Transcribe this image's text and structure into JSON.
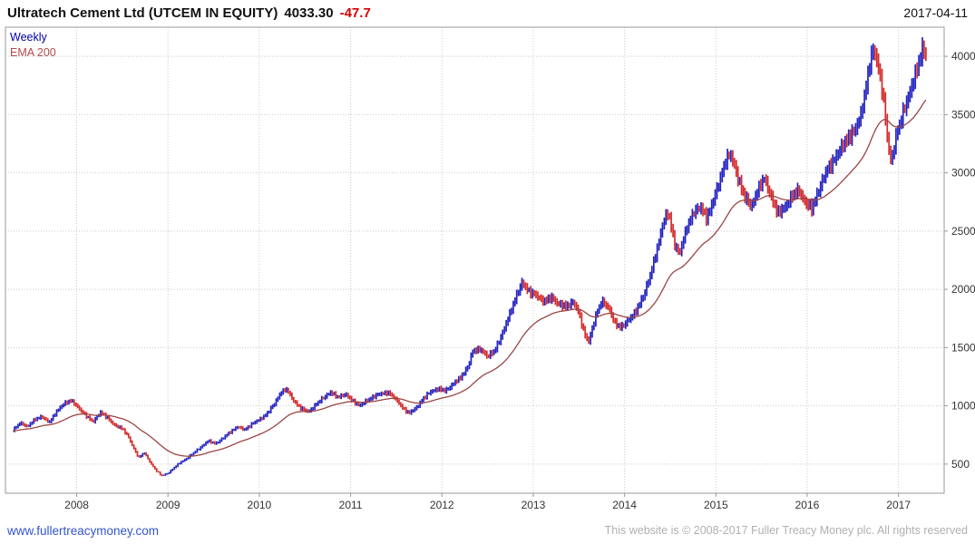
{
  "colors": {
    "negative": "#d40000",
    "up_bar": "#2222c0",
    "down_bar": "#d42a2a",
    "ema_line": "#9e4343",
    "legend_weekly": "#0000aa",
    "legend_ema": "#b44b4b",
    "grid": "#c9c9c9",
    "axis": "#9a9a9a",
    "tick_text": "#333333",
    "link": "#3355cc",
    "copyright_text": "#b0b0b0"
  },
  "header": {
    "title": "Ultratech Cement Ltd (UTCEM IN EQUITY)",
    "last_price": "4033.30",
    "change": "-47.7",
    "date": "2017-04-11"
  },
  "legend": {
    "series_label": "Weekly",
    "overlay_label": "EMA 200"
  },
  "footer": {
    "website": "www.fullertreacymoney.com",
    "copyright": "This website is © 2008-2017 Fuller Treacy Money plc. All rights reserved"
  },
  "chart_data": {
    "type": "line",
    "variant": "weekly ohlc-style price bars with EMA overlay",
    "title": "Ultratech Cement Ltd (UTCEM IN EQUITY)",
    "xlabel": "",
    "ylabel": "",
    "legend_position": "top-left",
    "grid": "dotted",
    "x_axis": {
      "range": [
        2007.22,
        2017.5
      ],
      "ticks": [
        2008,
        2009,
        2010,
        2011,
        2012,
        2013,
        2014,
        2015,
        2016,
        2017
      ]
    },
    "y_axis": {
      "range": [
        250,
        4250
      ],
      "ticks": [
        500,
        1000,
        1500,
        2000,
        2500,
        3000,
        3500,
        4000
      ],
      "side": "right"
    },
    "series": [
      {
        "name": "Weekly",
        "color_up": "#2222c0",
        "color_down": "#d42a2a",
        "keypoints": [
          [
            2007.3,
            790
          ],
          [
            2007.38,
            855
          ],
          [
            2007.46,
            820
          ],
          [
            2007.54,
            885
          ],
          [
            2007.62,
            905
          ],
          [
            2007.7,
            860
          ],
          [
            2007.78,
            950
          ],
          [
            2007.86,
            1020
          ],
          [
            2007.94,
            1045
          ],
          [
            2008.02,
            985
          ],
          [
            2008.1,
            915
          ],
          [
            2008.18,
            865
          ],
          [
            2008.26,
            945
          ],
          [
            2008.34,
            895
          ],
          [
            2008.42,
            830
          ],
          [
            2008.5,
            805
          ],
          [
            2008.56,
            745
          ],
          [
            2008.62,
            640
          ],
          [
            2008.68,
            555
          ],
          [
            2008.74,
            600
          ],
          [
            2008.8,
            520
          ],
          [
            2008.86,
            455
          ],
          [
            2008.93,
            400
          ],
          [
            2009.0,
            420
          ],
          [
            2009.06,
            465
          ],
          [
            2009.12,
            505
          ],
          [
            2009.2,
            545
          ],
          [
            2009.28,
            595
          ],
          [
            2009.36,
            645
          ],
          [
            2009.44,
            700
          ],
          [
            2009.52,
            675
          ],
          [
            2009.6,
            720
          ],
          [
            2009.68,
            775
          ],
          [
            2009.76,
            820
          ],
          [
            2009.84,
            795
          ],
          [
            2009.92,
            845
          ],
          [
            2010.0,
            880
          ],
          [
            2010.08,
            930
          ],
          [
            2010.16,
            1010
          ],
          [
            2010.24,
            1120
          ],
          [
            2010.3,
            1140
          ],
          [
            2010.38,
            1040
          ],
          [
            2010.46,
            975
          ],
          [
            2010.54,
            950
          ],
          [
            2010.62,
            1010
          ],
          [
            2010.7,
            1070
          ],
          [
            2010.78,
            1115
          ],
          [
            2010.86,
            1075
          ],
          [
            2010.94,
            1100
          ],
          [
            2011.02,
            1045
          ],
          [
            2011.1,
            1000
          ],
          [
            2011.18,
            1045
          ],
          [
            2011.26,
            1085
          ],
          [
            2011.34,
            1105
          ],
          [
            2011.42,
            1115
          ],
          [
            2011.5,
            1050
          ],
          [
            2011.58,
            975
          ],
          [
            2011.64,
            935
          ],
          [
            2011.72,
            985
          ],
          [
            2011.8,
            1065
          ],
          [
            2011.88,
            1125
          ],
          [
            2011.96,
            1145
          ],
          [
            2012.04,
            1130
          ],
          [
            2012.12,
            1185
          ],
          [
            2012.2,
            1240
          ],
          [
            2012.28,
            1330
          ],
          [
            2012.34,
            1470
          ],
          [
            2012.42,
            1490
          ],
          [
            2012.5,
            1420
          ],
          [
            2012.58,
            1480
          ],
          [
            2012.66,
            1610
          ],
          [
            2012.74,
            1790
          ],
          [
            2012.82,
            1950
          ],
          [
            2012.88,
            2060
          ],
          [
            2012.96,
            1975
          ],
          [
            2013.04,
            1945
          ],
          [
            2013.12,
            1895
          ],
          [
            2013.2,
            1930
          ],
          [
            2013.28,
            1875
          ],
          [
            2013.36,
            1850
          ],
          [
            2013.44,
            1895
          ],
          [
            2013.5,
            1795
          ],
          [
            2013.56,
            1620
          ],
          [
            2013.61,
            1555
          ],
          [
            2013.68,
            1760
          ],
          [
            2013.75,
            1905
          ],
          [
            2013.82,
            1845
          ],
          [
            2013.9,
            1705
          ],
          [
            2013.97,
            1675
          ],
          [
            2014.04,
            1730
          ],
          [
            2014.12,
            1810
          ],
          [
            2014.2,
            1925
          ],
          [
            2014.28,
            2120
          ],
          [
            2014.36,
            2350
          ],
          [
            2014.43,
            2600
          ],
          [
            2014.48,
            2660
          ],
          [
            2014.55,
            2380
          ],
          [
            2014.6,
            2310
          ],
          [
            2014.68,
            2520
          ],
          [
            2014.76,
            2670
          ],
          [
            2014.83,
            2705
          ],
          [
            2014.9,
            2610
          ],
          [
            2014.97,
            2760
          ],
          [
            2015.04,
            2920
          ],
          [
            2015.11,
            3120
          ],
          [
            2015.16,
            3160
          ],
          [
            2015.24,
            2960
          ],
          [
            2015.32,
            2790
          ],
          [
            2015.39,
            2705
          ],
          [
            2015.46,
            2860
          ],
          [
            2015.53,
            2950
          ],
          [
            2015.61,
            2790
          ],
          [
            2015.68,
            2650
          ],
          [
            2015.76,
            2710
          ],
          [
            2015.84,
            2805
          ],
          [
            2015.91,
            2850
          ],
          [
            2015.98,
            2745
          ],
          [
            2016.05,
            2690
          ],
          [
            2016.13,
            2860
          ],
          [
            2016.21,
            3010
          ],
          [
            2016.29,
            3110
          ],
          [
            2016.37,
            3205
          ],
          [
            2016.45,
            3310
          ],
          [
            2016.52,
            3360
          ],
          [
            2016.58,
            3465
          ],
          [
            2016.64,
            3720
          ],
          [
            2016.69,
            3960
          ],
          [
            2016.73,
            4060
          ],
          [
            2016.78,
            3910
          ],
          [
            2016.83,
            3680
          ],
          [
            2016.88,
            3280
          ],
          [
            2016.92,
            3080
          ],
          [
            2016.97,
            3310
          ],
          [
            2017.03,
            3460
          ],
          [
            2017.09,
            3610
          ],
          [
            2017.15,
            3760
          ],
          [
            2017.21,
            3905
          ],
          [
            2017.26,
            4060
          ],
          [
            2017.3,
            4033
          ]
        ]
      },
      {
        "name": "EMA 200",
        "color": "#9e4343",
        "derived": "ema",
        "period_weeks": 40
      }
    ]
  }
}
